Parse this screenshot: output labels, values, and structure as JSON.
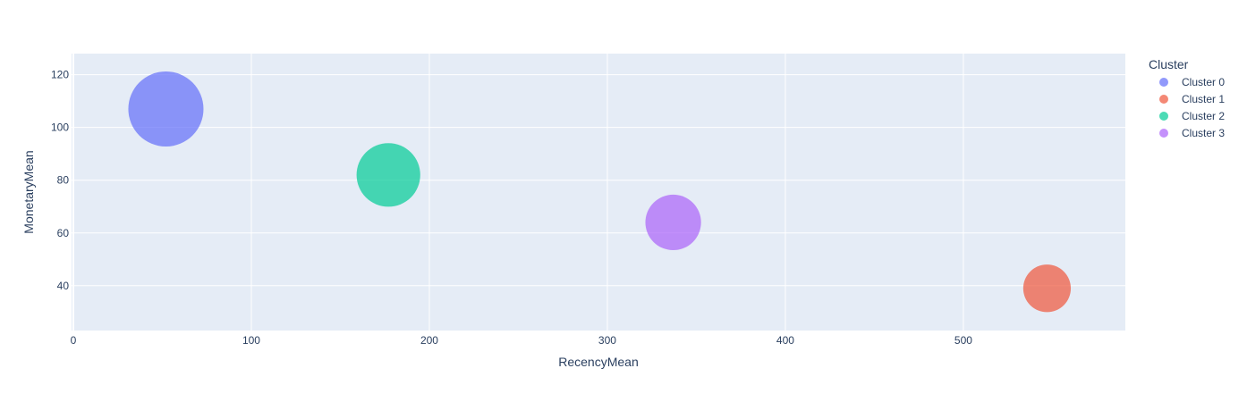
{
  "chart_data": {
    "type": "scatter",
    "xlabel": "RecencyMean",
    "ylabel": "MonetaryMean",
    "xlim": [
      -1,
      591
    ],
    "ylim": [
      23,
      128
    ],
    "xticks": [
      0,
      100,
      200,
      300,
      400,
      500
    ],
    "yticks": [
      40,
      60,
      80,
      100,
      120
    ],
    "grid": true,
    "legend": {
      "title": "Cluster",
      "placement": "right"
    },
    "series": [
      {
        "name": "Cluster 0",
        "color": "#636efa",
        "x": [
          52
        ],
        "y": [
          107
        ],
        "size": [
          100
        ]
      },
      {
        "name": "Cluster 1",
        "color": "#ef553b",
        "x": [
          547
        ],
        "y": [
          39
        ],
        "size": [
          40
        ]
      },
      {
        "name": "Cluster 2",
        "color": "#00cc96",
        "x": [
          177
        ],
        "y": [
          82
        ],
        "size": [
          72
        ]
      },
      {
        "name": "Cluster 3",
        "color": "#ab63fa",
        "x": [
          337
        ],
        "y": [
          64
        ],
        "size": [
          55
        ]
      }
    ]
  }
}
